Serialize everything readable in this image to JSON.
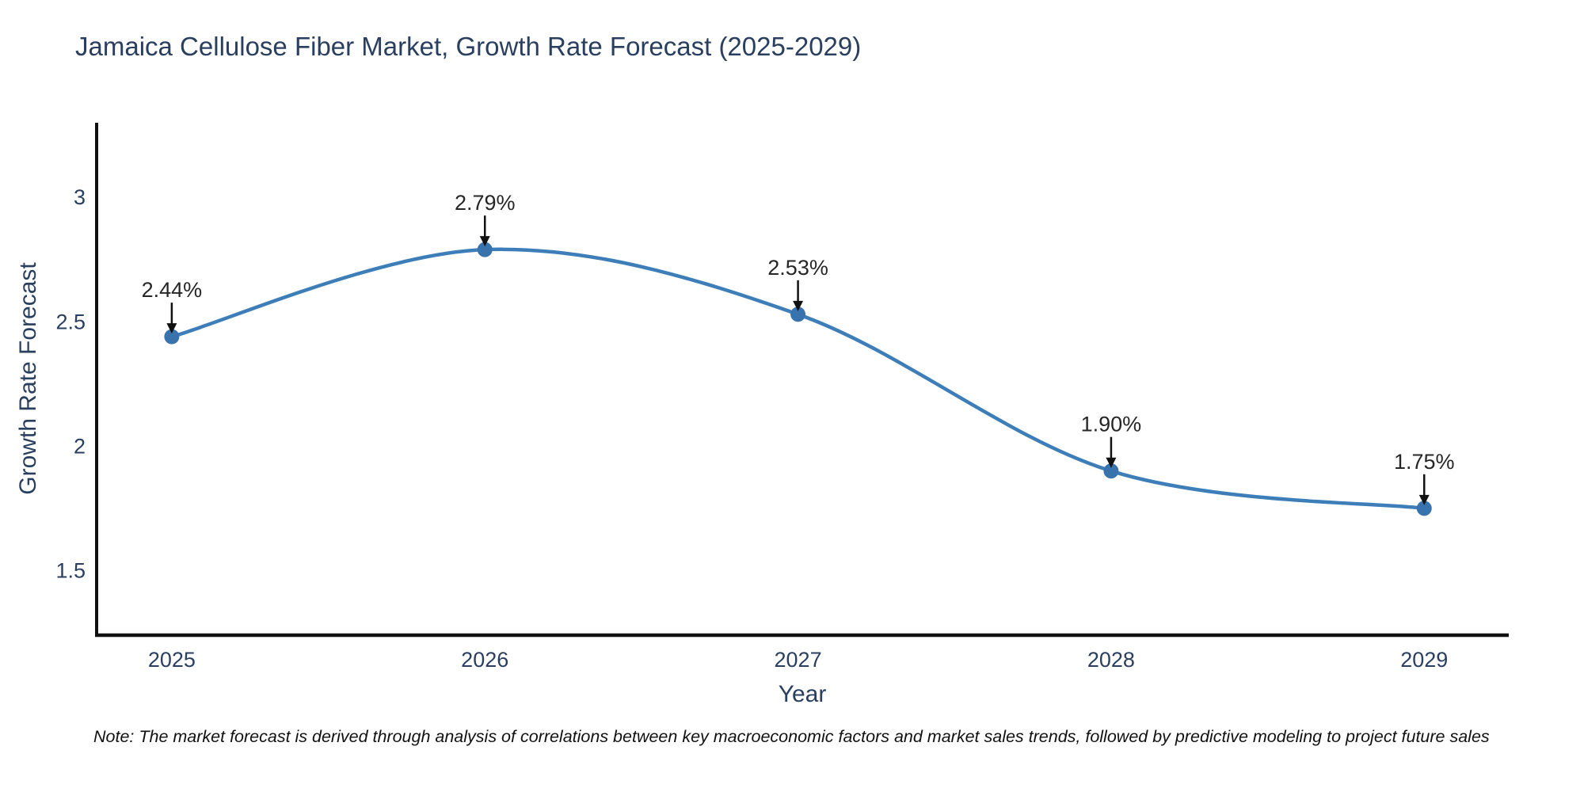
{
  "page": {
    "title": "Jamaica Cellulose Fiber Market, Growth Rate Forecast (2025-2029)",
    "note": "Note: The market forecast is derived through analysis of correlations between key macroeconomic factors and market sales trends, followed by predictive modeling to project future sales"
  },
  "chart_data": {
    "type": "line",
    "title": "Jamaica Cellulose Fiber Market, Growth Rate Forecast (2025-2029)",
    "xlabel": "Year",
    "ylabel": "Growth Rate Forecast",
    "x": [
      2025,
      2026,
      2027,
      2028,
      2029
    ],
    "values": [
      2.44,
      2.79,
      2.53,
      1.9,
      1.75
    ],
    "point_labels": [
      "2.44%",
      "2.79%",
      "2.53%",
      "1.90%",
      "1.75%"
    ],
    "x_tick_labels": [
      "2025",
      "2026",
      "2027",
      "2028",
      "2029"
    ],
    "y_ticks": [
      1.5,
      2,
      2.5,
      3
    ],
    "y_tick_labels": [
      "1.5",
      "2",
      "2.5",
      "3"
    ],
    "xlim": [
      2024.76,
      2029.27
    ],
    "ylim": [
      1.24,
      3.3
    ],
    "grid": false,
    "legend": "none",
    "line_shape": "spline",
    "marker": "circle",
    "annotation_arrows": "down-to-point",
    "colors": {
      "line": "#3d7eb8",
      "marker": "#3973ae",
      "axis": "#111111",
      "title_text": "#2a3f5f",
      "tick_text": "#2a3f5f",
      "annotation_text": "#262626",
      "background": "#ffffff"
    }
  }
}
